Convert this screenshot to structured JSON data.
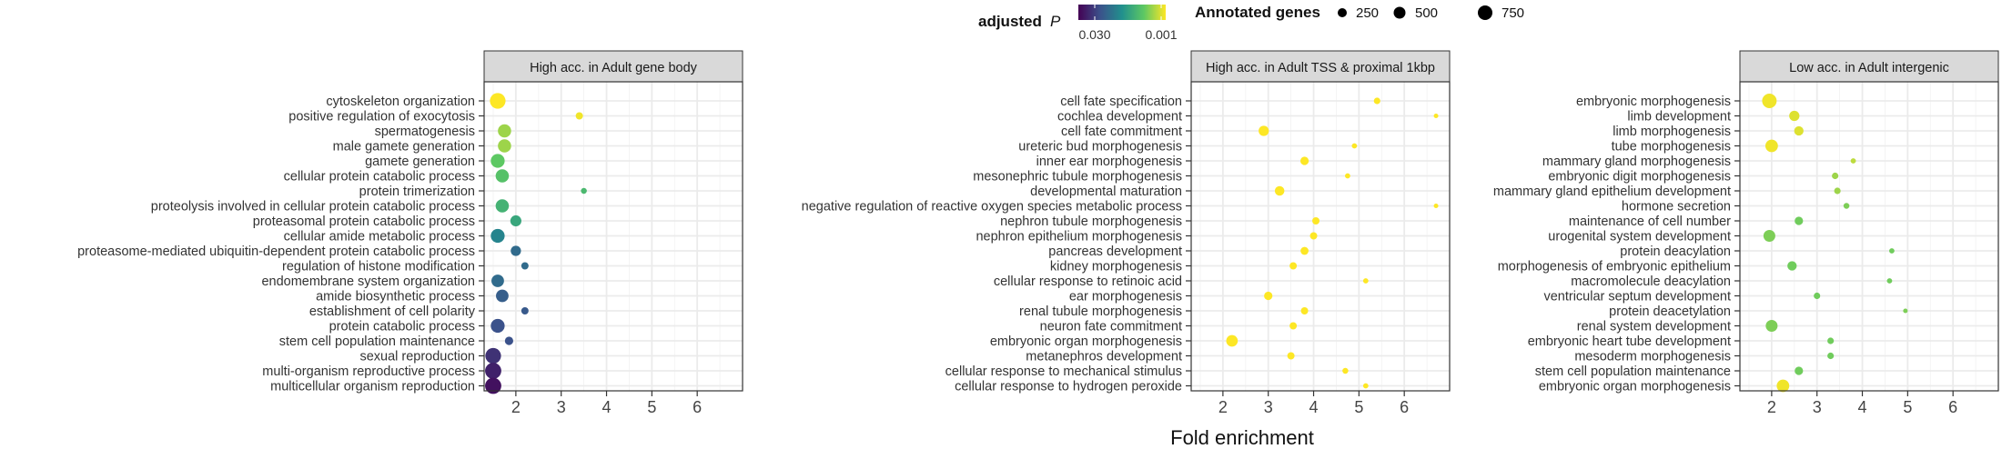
{
  "legend": {
    "color_title": "adjusted",
    "color_title_italic": "P",
    "color_low_label": "0.030",
    "color_high_label": "0.001",
    "size_title": "Annotated genes",
    "size_labels": [
      "250",
      "500",
      "750"
    ],
    "size_values": [
      250,
      500,
      750
    ]
  },
  "x_axis_label": "Fold enrichment",
  "colors": {
    "viridis": [
      "#440154",
      "#3b528b",
      "#21908d",
      "#5dc863",
      "#fde725"
    ],
    "panel_strip": "#d9d9d9",
    "grid": "#ebebeb"
  },
  "chart_data": [
    {
      "type": "scatter",
      "title": "High acc. in Adult gene body",
      "xlim": [
        1.3,
        7.0
      ],
      "xticks": [
        2,
        3,
        4,
        5,
        6
      ],
      "grid": true,
      "categories": [
        "cytoskeleton organization",
        "positive regulation of exocytosis",
        "spermatogenesis",
        "male gamete generation",
        "gamete generation",
        "cellular protein catabolic process",
        "protein trimerization",
        "proteolysis involved in cellular protein catabolic process",
        "proteasomal protein catabolic process",
        "cellular amide metabolic process",
        "proteasome-mediated ubiquitin-dependent protein catabolic process",
        "regulation of histone modification",
        "endomembrane system organization",
        "amide biosynthetic process",
        "establishment of cell polarity",
        "protein catabolic process",
        "stem cell population maintenance",
        "sexual reproduction",
        "multi-organism reproductive process",
        "multicellular organism reproduction"
      ],
      "fold_enrichment": [
        1.6,
        3.4,
        1.75,
        1.75,
        1.6,
        1.7,
        3.5,
        1.7,
        2.0,
        1.6,
        2.0,
        2.2,
        1.6,
        1.7,
        2.2,
        1.6,
        1.85,
        1.5,
        1.5,
        1.5
      ],
      "annotated_genes": [
        700,
        150,
        500,
        500,
        550,
        500,
        100,
        500,
        350,
        550,
        300,
        150,
        450,
        450,
        150,
        550,
        200,
        700,
        750,
        750
      ],
      "color_scale": [
        1.0,
        0.98,
        0.85,
        0.85,
        0.75,
        0.72,
        0.68,
        0.65,
        0.6,
        0.45,
        0.35,
        0.35,
        0.35,
        0.3,
        0.28,
        0.25,
        0.25,
        0.15,
        0.1,
        0.05
      ]
    },
    {
      "type": "scatter",
      "title": "High acc. in Adult TSS & proximal 1kbp",
      "xlim": [
        1.3,
        7.0
      ],
      "xticks": [
        2,
        3,
        4,
        5,
        6
      ],
      "grid": true,
      "categories": [
        "cell fate specification",
        "cochlea development",
        "cell fate commitment",
        "ureteric bud morphogenesis",
        "inner ear morphogenesis",
        "mesonephric tubule morphogenesis",
        "developmental maturation",
        "negative regulation of reactive oxygen species metabolic process",
        "nephron tubule morphogenesis",
        "nephron epithelium morphogenesis",
        "pancreas development",
        "kidney morphogenesis",
        "cellular response to retinoic acid",
        "ear morphogenesis",
        "renal tubule morphogenesis",
        "neuron fate commitment",
        "embryonic organ morphogenesis",
        "metanephros development",
        "cellular response to mechanical stimulus",
        "cellular response to hydrogen peroxide"
      ],
      "fold_enrichment": [
        5.4,
        6.7,
        2.9,
        4.9,
        3.8,
        4.75,
        3.25,
        6.7,
        4.05,
        4.0,
        3.8,
        3.55,
        5.15,
        3.0,
        3.8,
        3.55,
        2.2,
        3.5,
        4.7,
        5.15
      ],
      "annotated_genes": [
        120,
        60,
        300,
        80,
        200,
        80,
        260,
        60,
        150,
        150,
        180,
        150,
        80,
        200,
        150,
        150,
        380,
        150,
        100,
        80
      ],
      "color_scale": [
        1.0,
        1.0,
        1.0,
        1.0,
        1.0,
        1.0,
        1.0,
        1.0,
        1.0,
        1.0,
        1.0,
        1.0,
        1.0,
        1.0,
        1.0,
        1.0,
        1.0,
        1.0,
        1.0,
        1.0
      ]
    },
    {
      "type": "scatter",
      "title": "Low acc. in Adult intergenic",
      "xlim": [
        1.3,
        7.0
      ],
      "xticks": [
        2,
        3,
        4,
        5,
        6
      ],
      "grid": true,
      "categories": [
        "embryonic morphogenesis",
        "limb development",
        "limb morphogenesis",
        "tube morphogenesis",
        "mammary gland morphogenesis",
        "embryonic digit morphogenesis",
        "mammary gland epithelium development",
        "hormone secretion",
        "maintenance of cell number",
        "urogenital system development",
        "protein deacylation",
        "morphogenesis of embryonic epithelium",
        "macromolecule deacylation",
        "ventricular septum development",
        "protein deacetylation",
        "renal system development",
        "embryonic heart tube development",
        "mesoderm morphogenesis",
        "stem cell population maintenance",
        "embryonic organ morphogenesis"
      ],
      "fold_enrichment": [
        1.95,
        2.5,
        2.6,
        2.0,
        3.8,
        3.4,
        3.45,
        3.65,
        2.6,
        1.95,
        4.65,
        2.45,
        4.6,
        3.0,
        4.95,
        2.0,
        3.3,
        3.3,
        2.6,
        2.25
      ],
      "annotated_genes": [
        600,
        300,
        250,
        450,
        80,
        120,
        120,
        100,
        200,
        400,
        80,
        250,
        80,
        120,
        60,
        400,
        120,
        120,
        200,
        450
      ],
      "color_scale": [
        0.98,
        0.95,
        0.95,
        0.98,
        0.9,
        0.85,
        0.85,
        0.8,
        0.78,
        0.8,
        0.78,
        0.78,
        0.78,
        0.78,
        0.8,
        0.8,
        0.78,
        0.78,
        0.78,
        0.98
      ]
    }
  ]
}
